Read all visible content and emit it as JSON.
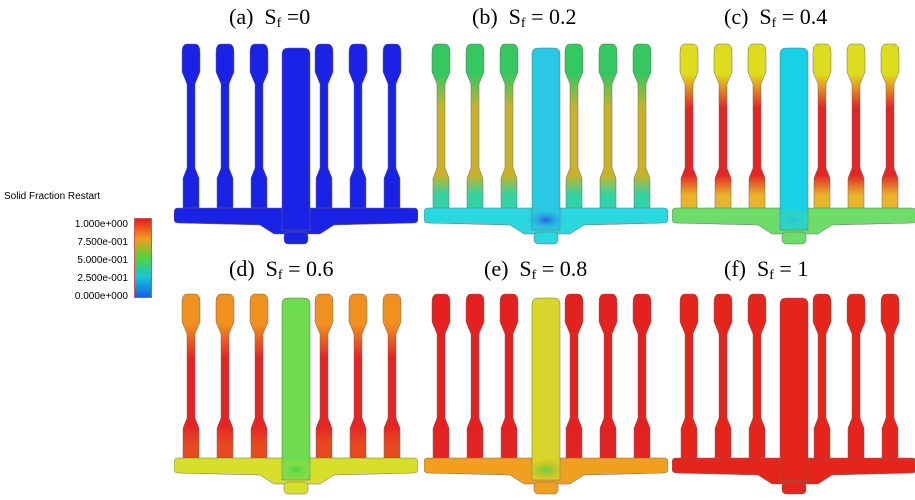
{
  "panels": [
    {
      "letter": "(a)",
      "symbol": "S",
      "subscript": "f",
      "value_text": " =0"
    },
    {
      "letter": "(b)",
      "symbol": "S",
      "subscript": "f",
      "value_text": " = 0.2"
    },
    {
      "letter": "(c)",
      "symbol": "S",
      "subscript": "f",
      "value_text": " = 0.4"
    },
    {
      "letter": "(d)",
      "symbol": "S",
      "subscript": "f",
      "value_text": " = 0.6"
    },
    {
      "letter": "(e)",
      "symbol": "S",
      "subscript": "f",
      "value_text": " = 0.8"
    },
    {
      "letter": "(f)",
      "symbol": "S",
      "subscript": "f",
      "value_text": " = 1"
    }
  ],
  "legend": {
    "title": "Solid Fraction Restart",
    "ticks": [
      "1.000e+000",
      "7.500e-001",
      "5.000e-001",
      "2.500e-001",
      "0.000e+000"
    ],
    "colors": [
      "#e41c1c",
      "#f39a1a",
      "#4fd43f",
      "#17c3dc",
      "#1560e0"
    ]
  },
  "fields": [
    {
      "panel": "a",
      "solid_fraction": 0.0,
      "top": "#1a22e6",
      "neck": "#1a22e6",
      "lower": "#1a22e6",
      "base": "#1a22e6",
      "sprue": "#1a22e6",
      "core": "#1a22e6"
    },
    {
      "panel": "b",
      "solid_fraction": 0.2,
      "top": "#35c860",
      "neck": "#c9b22a",
      "lower": "#31d3a4",
      "base": "#29d7df",
      "sprue": "#2ac8e4",
      "core": "#2a60e0"
    },
    {
      "panel": "c",
      "solid_fraction": 0.4,
      "top": "#dedc1e",
      "neck": "#e22626",
      "lower": "#e9b42a",
      "base": "#6edc68",
      "sprue": "#19d1e6",
      "core": "#19c8e0"
    },
    {
      "panel": "d",
      "solid_fraction": 0.6,
      "top": "#f0901e",
      "neck": "#e52424",
      "lower": "#e84a20",
      "base": "#d7df2b",
      "sprue": "#6fdc4f",
      "core": "#3fd84c"
    },
    {
      "panel": "e",
      "solid_fraction": 0.8,
      "top": "#e52020",
      "neck": "#e52020",
      "lower": "#e22424",
      "base": "#f0a01e",
      "sprue": "#d9d52a",
      "core": "#58d640"
    },
    {
      "panel": "f",
      "solid_fraction": 1.0,
      "top": "#e5251b",
      "neck": "#e5251b",
      "lower": "#e5251b",
      "base": "#e5251b",
      "sprue": "#e5251b",
      "core": "#e5251b"
    }
  ]
}
